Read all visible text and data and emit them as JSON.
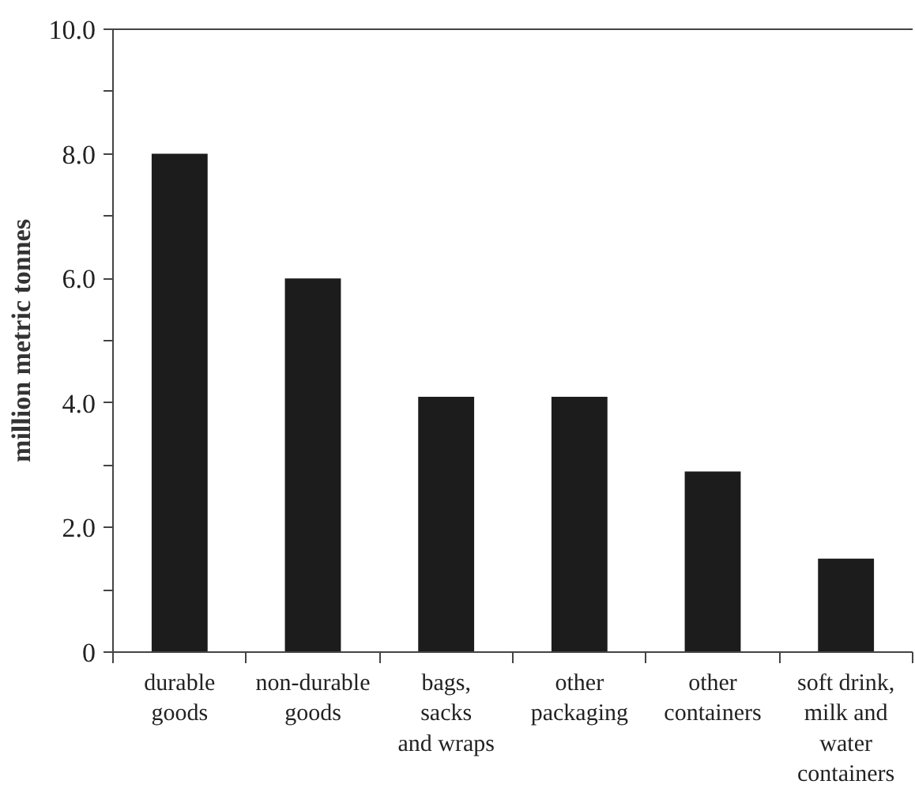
{
  "chart_data": {
    "type": "bar",
    "ylabel": "million metric tonnes",
    "categories": [
      "durable\ngoods",
      "non-durable\ngoods",
      "bags,\nsacks\nand wraps",
      "other\npackaging",
      "other\ncontainers",
      "soft drink,\nmilk and\nwater\ncontainers"
    ],
    "values": [
      8.0,
      6.0,
      4.1,
      4.1,
      2.9,
      1.5
    ],
    "color": "#1c1c1c",
    "ylim": [
      0,
      10
    ],
    "yticks": [
      0,
      {
        "value": 1,
        "label": null
      },
      {
        "value": 2,
        "label": "2.0"
      },
      {
        "value": 3,
        "label": null
      },
      {
        "value": 4,
        "label": "4.0"
      },
      {
        "value": 5,
        "label": null
      },
      {
        "value": 6,
        "label": "6.0"
      },
      {
        "value": 7,
        "label": null
      },
      {
        "value": 8,
        "label": "8.0"
      },
      {
        "value": 9,
        "label": null
      },
      {
        "value": 10,
        "label": "10.0"
      }
    ],
    "grid": false
  }
}
